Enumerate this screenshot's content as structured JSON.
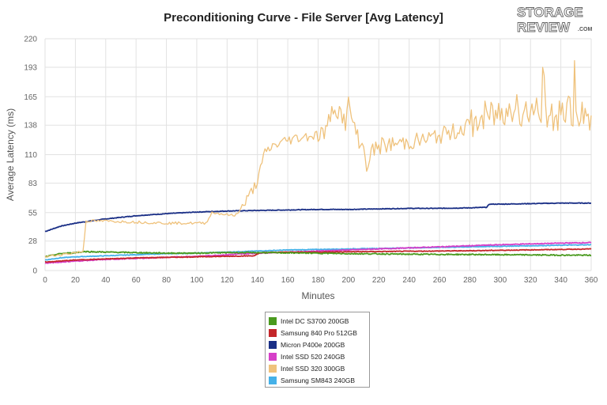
{
  "logo": {
    "line1": "STORAGE",
    "line2": "REVIEW",
    "suffix": ".COM"
  },
  "chart_data": {
    "type": "line",
    "title": "Preconditioning Curve - File Server [Avg Latency]",
    "xlabel": "Minutes",
    "ylabel": "Average Latency (ms)",
    "xlim": [
      0,
      360
    ],
    "ylim": [
      0,
      220
    ],
    "x_ticks": [
      0,
      20,
      40,
      60,
      80,
      100,
      120,
      140,
      160,
      180,
      200,
      220,
      240,
      260,
      280,
      300,
      320,
      340,
      360
    ],
    "y_ticks": [
      0,
      28,
      55,
      83,
      110,
      138,
      165,
      193,
      220
    ],
    "grid": true,
    "legend_position": "bottom-center",
    "series": [
      {
        "name": "Intel DC S3700 200GB",
        "color": "#4a9a1e",
        "x": [
          0,
          10,
          20,
          26,
          40,
          60,
          80,
          100,
          120,
          140,
          160,
          180,
          200,
          220,
          240,
          260,
          280,
          300,
          320,
          340,
          360
        ],
        "y": [
          13,
          16,
          17,
          18,
          17.5,
          17,
          16.5,
          16.5,
          17,
          17,
          16.8,
          16.5,
          16,
          15.8,
          15.5,
          15.3,
          15.2,
          15,
          14.8,
          14.6,
          14.5
        ],
        "noise": 0.5
      },
      {
        "name": "Samsung 840 Pro 512GB",
        "color": "#c4262a",
        "x": [
          0,
          20,
          40,
          60,
          80,
          100,
          120,
          138,
          142,
          160,
          180,
          200,
          220,
          240,
          260,
          280,
          300,
          320,
          340,
          360
        ],
        "y": [
          8,
          10,
          11,
          12,
          12.5,
          13,
          13.5,
          14,
          17,
          17.5,
          17.5,
          17.8,
          18,
          18.3,
          18.5,
          18.8,
          19.2,
          19.6,
          20,
          20.5
        ],
        "noise": 0.3
      },
      {
        "name": "Micron P400e 200GB",
        "color": "#1a2f86",
        "x": [
          0,
          10,
          20,
          30,
          40,
          60,
          80,
          100,
          120,
          140,
          160,
          180,
          200,
          220,
          240,
          260,
          280,
          291,
          293,
          300,
          320,
          340,
          360
        ],
        "y": [
          37,
          42,
          45,
          47,
          49,
          52,
          54,
          55.5,
          56.5,
          57,
          57.5,
          58,
          58,
          58.5,
          59,
          59,
          59.5,
          60,
          63,
          63,
          63.5,
          64,
          64
        ],
        "noise": 0.3
      },
      {
        "name": "Intel SSD 520 240GB",
        "color": "#d63fc8",
        "x": [
          0,
          20,
          40,
          60,
          80,
          100,
          120,
          140,
          160,
          180,
          200,
          220,
          240,
          260,
          280,
          300,
          320,
          340,
          360
        ],
        "y": [
          7,
          9,
          10.5,
          11.5,
          12.5,
          13.5,
          15,
          16.5,
          17.5,
          18.5,
          19.5,
          20.5,
          21.5,
          22.5,
          23.5,
          24.5,
          25.3,
          26,
          26.5
        ],
        "noise": 0.4
      },
      {
        "name": "Intel SSD 320 300GB",
        "color": "#efc27c",
        "x": [
          0,
          10,
          20,
          25,
          27,
          40,
          60,
          80,
          100,
          106,
          110,
          125,
          130,
          135,
          140,
          145,
          150,
          160,
          170,
          180,
          185,
          190,
          195,
          198,
          200,
          205,
          210,
          212,
          215,
          220,
          230,
          240,
          250,
          260,
          270,
          280,
          290,
          300,
          310,
          320,
          330,
          340,
          345,
          350,
          360
        ],
        "y": [
          13,
          15,
          17,
          18,
          47,
          47,
          46,
          45,
          45,
          45,
          55,
          52,
          60,
          72,
          85,
          112,
          118,
          124,
          127,
          129,
          132,
          155,
          150,
          140,
          158,
          130,
          115,
          100,
          112,
          118,
          120,
          122,
          124,
          128,
          132,
          138,
          145,
          150,
          155,
          150,
          148,
          145,
          150,
          148,
          145
        ],
        "noise": 6
      },
      {
        "name": "Samsung SM843 240GB",
        "color": "#45b1e8",
        "x": [
          0,
          10,
          20,
          40,
          60,
          80,
          100,
          120,
          140,
          160,
          180,
          200,
          220,
          240,
          260,
          280,
          300,
          320,
          340,
          360
        ],
        "y": [
          10,
          12,
          13,
          14,
          15,
          16,
          16.5,
          17.5,
          18.5,
          19.5,
          20,
          20.5,
          21,
          21.5,
          22,
          22.5,
          23,
          23.5,
          24,
          24.5
        ],
        "noise": 0.3
      }
    ]
  }
}
